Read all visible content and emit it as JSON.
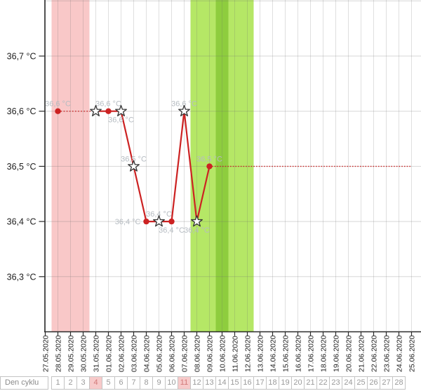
{
  "chart_data": {
    "type": "line",
    "title": "",
    "xlabel": "",
    "ylabel": "",
    "ylim": [
      36.2,
      36.8
    ],
    "grid": true,
    "legend": "none",
    "line_color": "#cc2222",
    "label_color": "#b6bcc2",
    "x": [
      "27.05.2020",
      "28.05.2020",
      "29.05.2020",
      "30.05.2020",
      "31.05.2020",
      "01.06.2020",
      "02.06.2020",
      "03.06.2020",
      "04.06.2020",
      "05.06.2020",
      "06.06.2020",
      "07.06.2020",
      "08.06.2020",
      "09.06.2020",
      "10.06.2020",
      "11.06.2020",
      "12.06.2020",
      "13.06.2020",
      "14.06.2020",
      "15.06.2020",
      "16.06.2020",
      "17.06.2020",
      "18.06.2020",
      "19.06.2020",
      "20.06.2020",
      "21.06.2020",
      "22.06.2020",
      "23.06.2020",
      "24.06.2020",
      "25.06.2020"
    ],
    "yticks": [
      {
        "value": 36.7,
        "label": "36,7 °C"
      },
      {
        "value": 36.6,
        "label": "36,6 °C"
      },
      {
        "value": 36.5,
        "label": "36,5 °C"
      },
      {
        "value": 36.4,
        "label": "36,4 °C"
      },
      {
        "value": 36.3,
        "label": "36,3 °C"
      }
    ],
    "bands": [
      {
        "name": "menstruation-band",
        "color": "#f9c8c8",
        "start_date": "28.05.2020",
        "end_date": "30.05.2020"
      },
      {
        "name": "fertile-window-band",
        "color": "#b5e766",
        "start_date": "08.06.2020",
        "end_date": "12.06.2020"
      },
      {
        "name": "ovulation-band",
        "color": "#8ecd3e",
        "start_date": "10.06.2020",
        "end_date": "10.06.2020"
      }
    ],
    "series": [
      {
        "name": "temperature",
        "points": [
          {
            "date": "28.05.2020",
            "value": 36.6,
            "display": "36,6 °C",
            "marker": "dot",
            "label_pos": "above"
          },
          {
            "date": "31.05.2020",
            "value": 36.6,
            "display": "",
            "marker": "star",
            "label_pos": "none"
          },
          {
            "date": "01.06.2020",
            "value": 36.6,
            "display": "36,6 °C",
            "marker": "dot",
            "label_pos": "above"
          },
          {
            "date": "02.06.2020",
            "value": 36.6,
            "display": "36,6 °C",
            "marker": "star",
            "label_pos": "below"
          },
          {
            "date": "03.06.2020",
            "value": 36.5,
            "display": "36,5 °C",
            "marker": "star",
            "label_pos": "above"
          },
          {
            "date": "04.06.2020",
            "value": 36.4,
            "display": "36,4 °C",
            "marker": "dot",
            "label_pos": "left"
          },
          {
            "date": "05.06.2020",
            "value": 36.4,
            "display": "36,4 °C",
            "marker": "star",
            "label_pos": "above"
          },
          {
            "date": "06.06.2020",
            "value": 36.4,
            "display": "36,4 °C",
            "marker": "dot",
            "label_pos": "below"
          },
          {
            "date": "07.06.2020",
            "value": 36.6,
            "display": "36,6 °C",
            "marker": "star",
            "label_pos": "above"
          },
          {
            "date": "08.06.2020",
            "value": 36.4,
            "display": "36,4 °C",
            "marker": "star",
            "label_pos": "below"
          },
          {
            "date": "09.06.2020",
            "value": 36.5,
            "display": "36,5 °C",
            "marker": "dot",
            "label_pos": "above"
          }
        ],
        "dotted_gap_segments": [
          [
            "28.05.2020",
            "31.05.2020"
          ]
        ],
        "coverline": {
          "value": 36.5,
          "display": "36,5 °C",
          "start_date": "09.06.2020",
          "end_date": "25.06.2020",
          "style": "dotted"
        }
      }
    ]
  },
  "cycle_row": {
    "label": "Den cyklu",
    "first_day_date": "28.05.2020",
    "days": [
      1,
      2,
      3,
      4,
      5,
      6,
      7,
      8,
      9,
      10,
      11,
      12,
      13,
      14,
      15,
      16,
      17,
      18,
      19,
      20,
      21,
      22,
      23,
      24,
      25,
      26,
      27,
      28
    ],
    "highlighted_days": [
      4,
      11
    ]
  }
}
